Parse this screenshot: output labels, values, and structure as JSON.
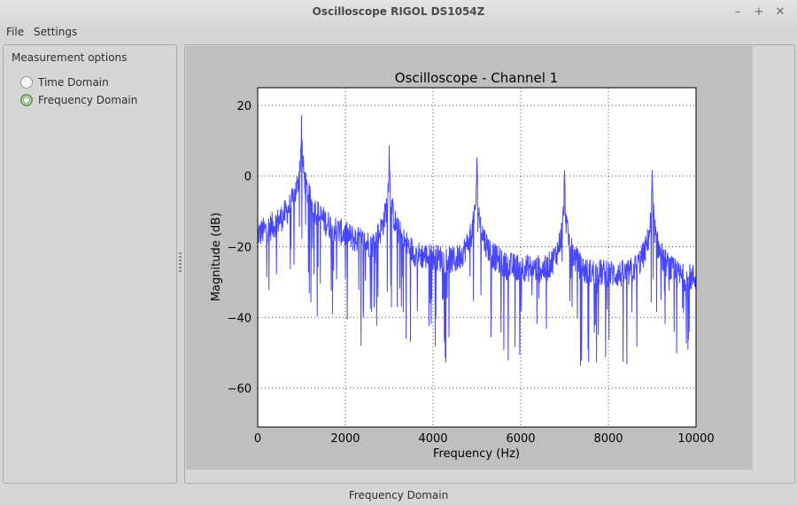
{
  "window": {
    "title": "Oscilloscope RIGOL DS1054Z",
    "controls": [
      "–",
      "+",
      "✕"
    ]
  },
  "menu": {
    "items": [
      "File",
      "Settings"
    ]
  },
  "sidebar": {
    "group_label": "Measurement options",
    "options": [
      {
        "label": "Time Domain",
        "selected": false
      },
      {
        "label": "Frequency Domain",
        "selected": true
      }
    ],
    "accent": "#6a9c52"
  },
  "status_bar": {
    "text": "Frequency Domain"
  },
  "chart_data": {
    "type": "line",
    "title": "Oscilloscope - Channel 1",
    "xlabel": "Frequency (Hz)",
    "ylabel": "Magnitude (dB)",
    "xlim": [
      0,
      10000
    ],
    "ylim": [
      -71,
      25
    ],
    "xticks": [
      0,
      2000,
      4000,
      6000,
      8000,
      10000
    ],
    "yticks": [
      20,
      0,
      -20,
      -40,
      -60
    ],
    "grid": true,
    "line_color": "#3333ff",
    "peaks": [
      {
        "x": 1000,
        "y": 17
      },
      {
        "x": 3000,
        "y": 8.5
      },
      {
        "x": 5000,
        "y": 5
      },
      {
        "x": 7000,
        "y": 1.5
      },
      {
        "x": 9000,
        "y": 1.5
      }
    ],
    "noise_floor_db": -35
  }
}
